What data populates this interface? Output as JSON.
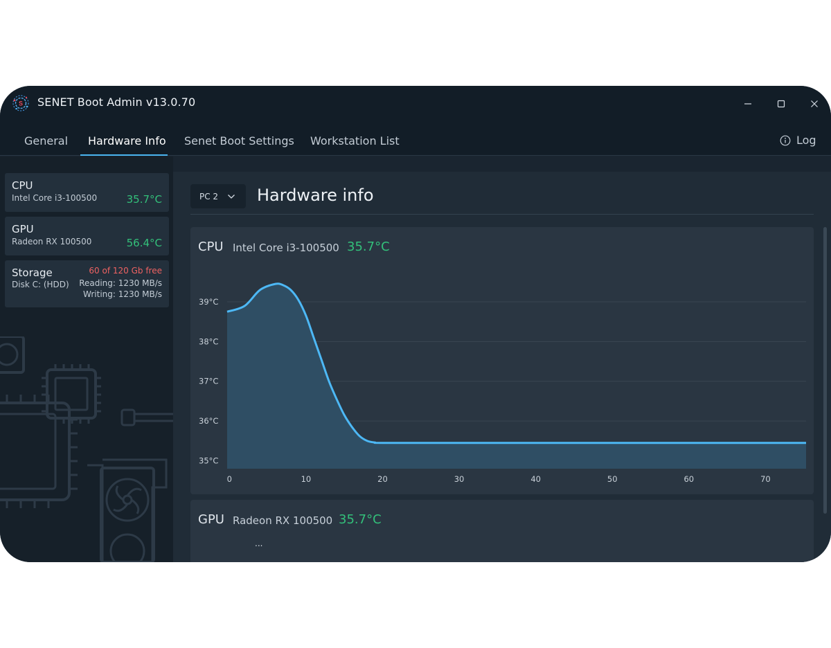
{
  "app": {
    "title": "SENET Boot Admin v13.0.70",
    "logo_icon": "senet-logo-icon"
  },
  "window_controls": {
    "minimize_icon": "minimize-icon",
    "maximize_icon": "maximize-icon",
    "close_icon": "close-icon"
  },
  "tabs": [
    {
      "label": "General",
      "active": false
    },
    {
      "label": "Hardware Info",
      "active": true
    },
    {
      "label": "Senet Boot Settings",
      "active": false
    },
    {
      "label": "Workstation List",
      "active": false
    }
  ],
  "log": {
    "label": "Log",
    "icon": "info-icon"
  },
  "sidebar": {
    "cpu": {
      "title": "CPU",
      "model": "Intel Core i3-100500",
      "temp": "35.7°C"
    },
    "gpu": {
      "title": "GPU",
      "model": "Radeon RX 100500",
      "temp": "56.4°C"
    },
    "storage": {
      "title": "Storage",
      "disk": "Disk C: (HDD)",
      "free": "60 of 120 Gb free",
      "reading": "Reading: 1230 MB/s",
      "writing": "Writing: 1230 MB/s"
    }
  },
  "main": {
    "pc_select": {
      "value": "PC 2",
      "icon": "chevron-down-icon"
    },
    "title": "Hardware info",
    "cpu_panel": {
      "kind": "CPU",
      "model": "Intel Core i3-100500",
      "temp": "35.7°C"
    },
    "gpu_panel": {
      "kind": "GPU",
      "model": "Radeon RX 100500",
      "temp": "35.7°C",
      "more": "..."
    }
  },
  "colors": {
    "accent": "#4ab4f0",
    "temp_ok": "#33c07a",
    "warning": "#ef6262",
    "window_bg": "#1a2530",
    "line": "#4db8f5",
    "area_fill": "#2f4e64"
  },
  "chart_data": {
    "type": "area",
    "title": "",
    "xlabel": "",
    "ylabel": "",
    "x_ticks": [
      0,
      10,
      20,
      30,
      40,
      50,
      60,
      70
    ],
    "y_ticks": [
      35,
      36,
      37,
      38,
      39
    ],
    "y_tick_labels": [
      "35°C",
      "36°C",
      "37°C",
      "38°C",
      "39°C"
    ],
    "xlim": [
      -0.3,
      75.3
    ],
    "ylim": [
      34.8,
      39.4
    ],
    "grid": true,
    "series": [
      {
        "x": [
          -0.3,
          2,
          4,
          6,
          7,
          8,
          9,
          10,
          11,
          12,
          13,
          14,
          15,
          16,
          17,
          18,
          19,
          20,
          30,
          40,
          50,
          60,
          70,
          75.3
        ],
        "values": [
          38.75,
          38.9,
          39.3,
          39.45,
          39.42,
          39.3,
          39.05,
          38.65,
          38.1,
          37.55,
          37.0,
          36.55,
          36.15,
          35.85,
          35.62,
          35.5,
          35.46,
          35.45,
          35.45,
          35.45,
          35.45,
          35.45,
          35.45,
          35.45
        ]
      }
    ]
  }
}
